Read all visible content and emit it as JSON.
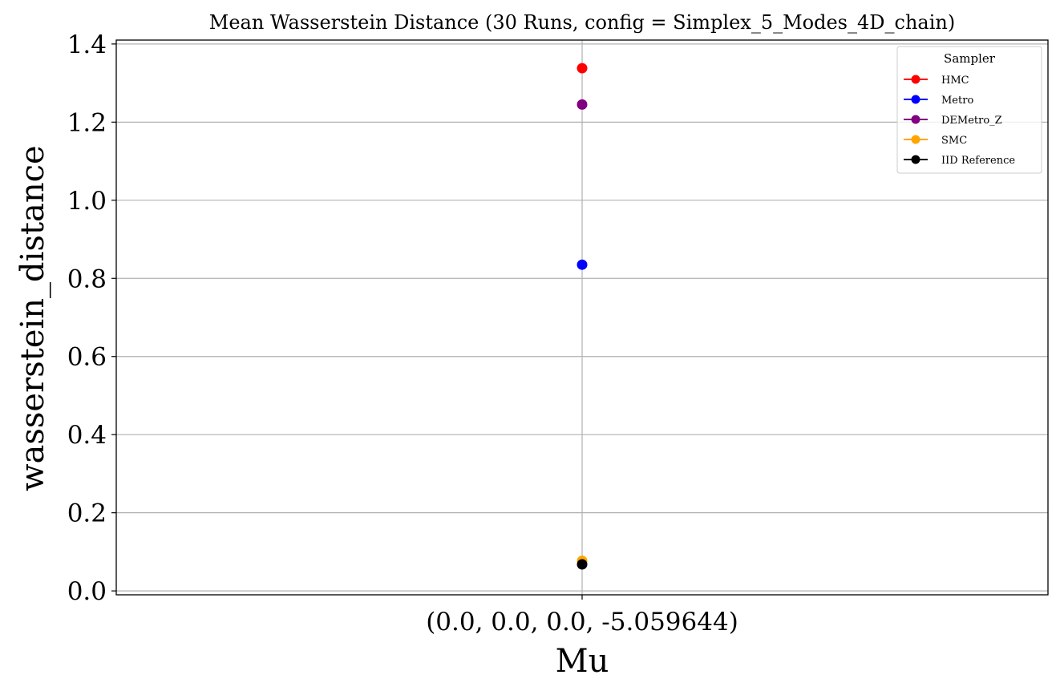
{
  "chart_data": {
    "type": "scatter",
    "title": "Mean Wasserstein Distance (30 Runs, config = Simplex_5_Modes_4D_chain)",
    "xlabel": "Mu",
    "ylabel": "wasserstein_distance",
    "categories": [
      "(0.0, 0.0, 0.0, -5.059644)"
    ],
    "ylim": [
      -0.01,
      1.41
    ],
    "yticks": [
      "0.0",
      "0.2",
      "0.4",
      "0.6",
      "0.8",
      "1.0",
      "1.2",
      "1.4"
    ],
    "grid": true,
    "legend": {
      "title": "Sampler",
      "placement": "top-right"
    },
    "series": [
      {
        "name": "HMC",
        "color": "#ff0000",
        "values": [
          1.338
        ]
      },
      {
        "name": "Metro",
        "color": "#0000ff",
        "values": [
          0.835
        ]
      },
      {
        "name": "DEMetro_Z",
        "color": "#800080",
        "values": [
          1.245
        ]
      },
      {
        "name": "SMC",
        "color": "#ffa500",
        "values": [
          0.077
        ]
      },
      {
        "name": "IID Reference",
        "color": "#000000",
        "values": [
          0.068
        ]
      }
    ]
  }
}
